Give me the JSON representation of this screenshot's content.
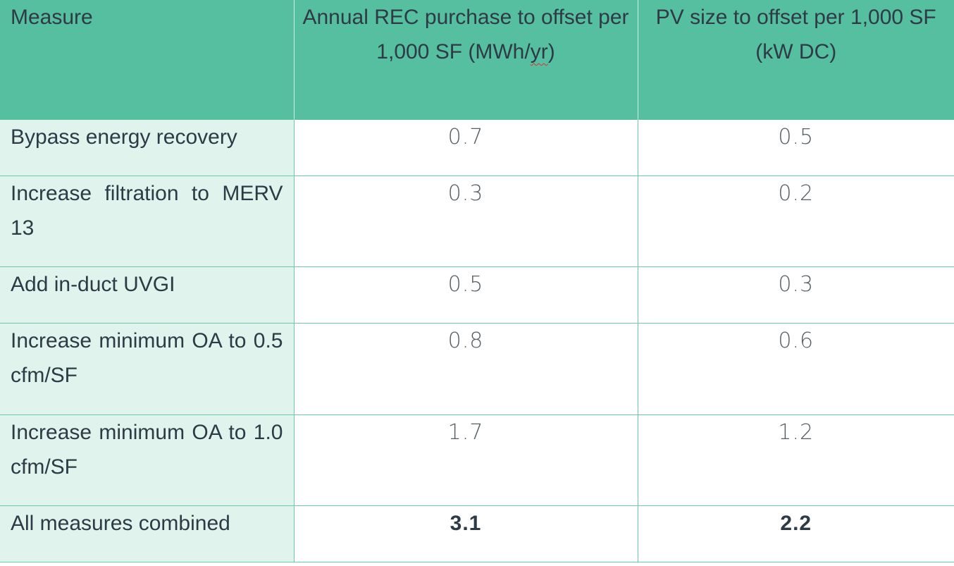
{
  "table": {
    "headers": {
      "measure": "Measure",
      "rec_pre": "Annual REC purchase to offset per 1,000 SF (MWh/",
      "rec_underlined": "yr",
      "rec_post": ")",
      "pv": "PV size to offset per 1,000 SF (kW DC)"
    },
    "rows": [
      {
        "measure": "Bypass energy recovery",
        "rec": "0.7",
        "pv": "0.5"
      },
      {
        "measure": "Increase filtration to MERV 13",
        "rec": "0.3",
        "pv": "0.2"
      },
      {
        "measure": "Add in-duct UVGI",
        "rec": "0.5",
        "pv": "0.3"
      },
      {
        "measure": "Increase minimum OA to 0.5 cfm/SF",
        "rec": "0.8",
        "pv": "0.6"
      },
      {
        "measure": "Increase minimum OA to 1.0 cfm/SF",
        "rec": "1.7",
        "pv": "1.2"
      },
      {
        "measure": "All measures combined",
        "rec": "3.1",
        "pv": "2.2"
      }
    ]
  },
  "colors": {
    "header_bg": "#55bfa0",
    "measure_col_bg": "#e0f3ec",
    "grid_line": "#6fc7ab",
    "text": "#2e3a45"
  }
}
